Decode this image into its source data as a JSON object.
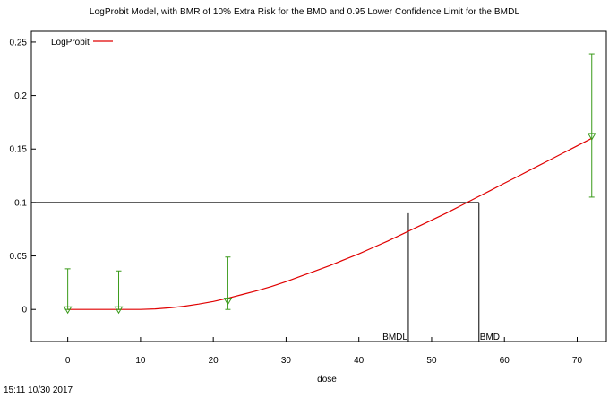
{
  "chart_data": {
    "type": "line",
    "title": "LogProbit Model, with BMR of 10% Extra Risk for the BMD and 0.95 Lower Confidence Limit for the BMDL",
    "xlabel": "dose",
    "ylabel": "",
    "xlim": [
      -5,
      74
    ],
    "ylim": [
      -0.03,
      0.26
    ],
    "x_ticks": [
      0,
      10,
      20,
      30,
      40,
      50,
      60,
      70
    ],
    "y_ticks": [
      0,
      0.05,
      0.1,
      0.15,
      0.2,
      0.25
    ],
    "x_tick_labels": [
      "0",
      "10",
      "20",
      "30",
      "40",
      "50",
      "60",
      "70"
    ],
    "y_tick_labels": [
      "0",
      "0.05",
      "0.1",
      "0.15",
      "0.2",
      "0.25"
    ],
    "grid": false,
    "legend": {
      "position": "top-left",
      "entries": [
        "LogProbit"
      ]
    },
    "series": [
      {
        "name": "LogProbit",
        "color": "#e00000",
        "x": [
          0,
          10,
          12,
          14,
          16,
          18,
          20,
          22,
          24,
          26,
          28,
          30,
          32,
          34,
          36,
          38,
          40,
          42,
          44,
          46,
          48,
          50,
          52,
          54,
          56,
          58,
          60,
          62,
          64,
          66,
          68,
          70,
          72
        ],
        "y": [
          0,
          0,
          0.0005,
          0.0015,
          0.003,
          0.005,
          0.0075,
          0.0105,
          0.014,
          0.0175,
          0.0215,
          0.026,
          0.031,
          0.036,
          0.041,
          0.0465,
          0.052,
          0.058,
          0.064,
          0.0705,
          0.077,
          0.0835,
          0.09,
          0.097,
          0.104,
          0.111,
          0.118,
          0.125,
          0.132,
          0.139,
          0.146,
          0.153,
          0.16
        ]
      }
    ],
    "observed": {
      "color": "#3a9a1a",
      "points": [
        {
          "dose": 0,
          "mean": 0.0,
          "lower": 0.0,
          "upper": 0.038
        },
        {
          "dose": 7,
          "mean": 0.0,
          "lower": 0.0,
          "upper": 0.036
        },
        {
          "dose": 22,
          "mean": 0.008,
          "lower": 0.0,
          "upper": 0.049
        },
        {
          "dose": 72,
          "mean": 0.162,
          "lower": 0.105,
          "upper": 0.239
        }
      ]
    },
    "bmr_level": 0.1,
    "bmd": {
      "value": 56.5,
      "label": "BMD"
    },
    "bmdl": {
      "value": 46.8,
      "label": "BMDL"
    }
  },
  "footer": {
    "timestamp": "15:11 10/30 2017"
  }
}
